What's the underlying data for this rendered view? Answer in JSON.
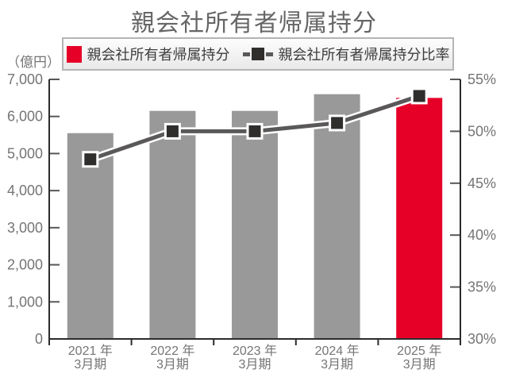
{
  "title": "親会社所有者帰属持分",
  "legend": {
    "bar_label": "親会社所有者帰属持分",
    "line_label": "親会社所有者帰属持分比率"
  },
  "colors": {
    "bar_gray": "#999999",
    "bar_red": "#e60028",
    "line": "#5a5858",
    "line_casing": "#ffffff",
    "marker_fill": "#302d2d",
    "marker_border": "#ffffff",
    "axis": "#2b2b2b",
    "tick": "#595757",
    "axis_text": "#757575",
    "title_text": "#666666",
    "legend_border": "#b5b5b5",
    "legend_text": "#3d3d3d"
  },
  "chart_data": {
    "type": "bar+line",
    "title": "親会社所有者帰属持分",
    "categories": [
      {
        "line1": "2021 年",
        "line2": "3月期"
      },
      {
        "line1": "2022 年",
        "line2": "3月期"
      },
      {
        "line1": "2023 年",
        "line2": "3月期"
      },
      {
        "line1": "2024 年",
        "line2": "3月期"
      },
      {
        "line1": "2025 年",
        "line2": "3月期"
      }
    ],
    "series": [
      {
        "name": "親会社所有者帰属持分",
        "type": "bar",
        "axis": "left",
        "values": [
          5550,
          6150,
          6150,
          6600,
          6500
        ],
        "bar_colors": [
          "#999999",
          "#999999",
          "#999999",
          "#999999",
          "#e60028"
        ]
      },
      {
        "name": "親会社所有者帰属持分比率",
        "type": "line",
        "axis": "right",
        "values": [
          47.3,
          50.0,
          50.0,
          50.8,
          53.4
        ]
      }
    ],
    "left_axis": {
      "label": "（億円）",
      "min": 0,
      "max": 7000,
      "step": 1000,
      "tick_labels": [
        "0",
        "1,000",
        "2,000",
        "3,000",
        "4,000",
        "5,000",
        "6,000",
        "7,000"
      ]
    },
    "right_axis": {
      "min": 30,
      "max": 55,
      "step": 5,
      "tick_labels": [
        "30%",
        "35%",
        "40%",
        "45%",
        "50%",
        "55%"
      ]
    },
    "grid": false,
    "legend_position": "top"
  }
}
